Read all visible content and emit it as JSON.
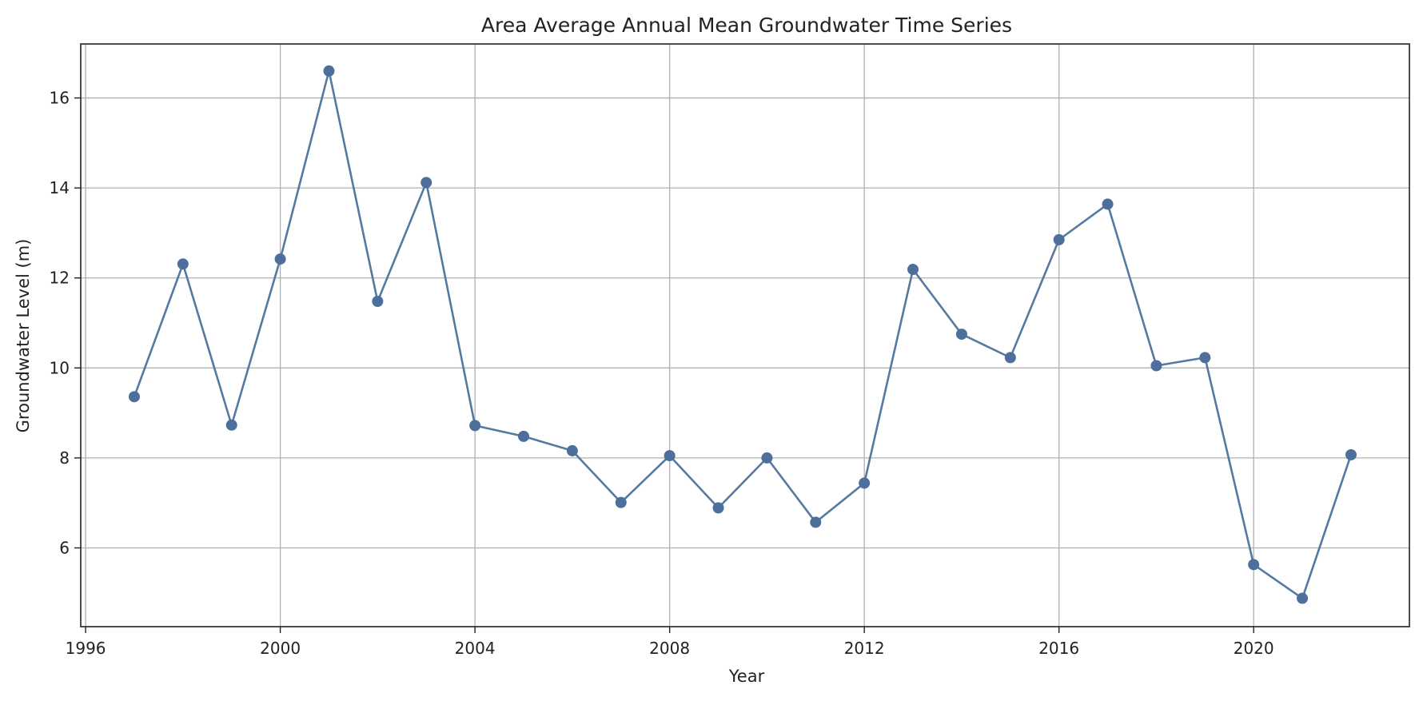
{
  "chart_data": {
    "type": "line",
    "title": "Area Average Annual Mean Groundwater Time Series",
    "xlabel": "Year",
    "ylabel": "Groundwater Level (m)",
    "xlim": [
      1995.9,
      2023.2
    ],
    "ylim": [
      4.25,
      17.2
    ],
    "xticks": [
      1996,
      2000,
      2004,
      2008,
      2012,
      2016,
      2020
    ],
    "yticks": [
      6,
      8,
      10,
      12,
      14,
      16
    ],
    "grid": true,
    "legend": "none",
    "line_color": "#5579a0",
    "marker_color": "#4d6f9b",
    "grid_color": "#b0b0b0",
    "series": [
      {
        "x": [
          1997,
          1998,
          1999,
          2000,
          2001,
          2002,
          2003,
          2004,
          2005,
          2006,
          2007,
          2008,
          2009,
          2010,
          2011,
          2012,
          2013,
          2014,
          2015,
          2016,
          2017,
          2018,
          2019,
          2020,
          2021,
          2022
        ],
        "values": [
          9.36,
          12.31,
          8.73,
          12.42,
          16.6,
          11.48,
          14.12,
          8.72,
          8.48,
          8.16,
          7.01,
          8.05,
          6.89,
          8.0,
          6.57,
          7.44,
          12.19,
          10.75,
          10.23,
          12.85,
          13.64,
          10.05,
          10.23,
          5.63,
          4.88,
          8.07
        ]
      }
    ]
  }
}
